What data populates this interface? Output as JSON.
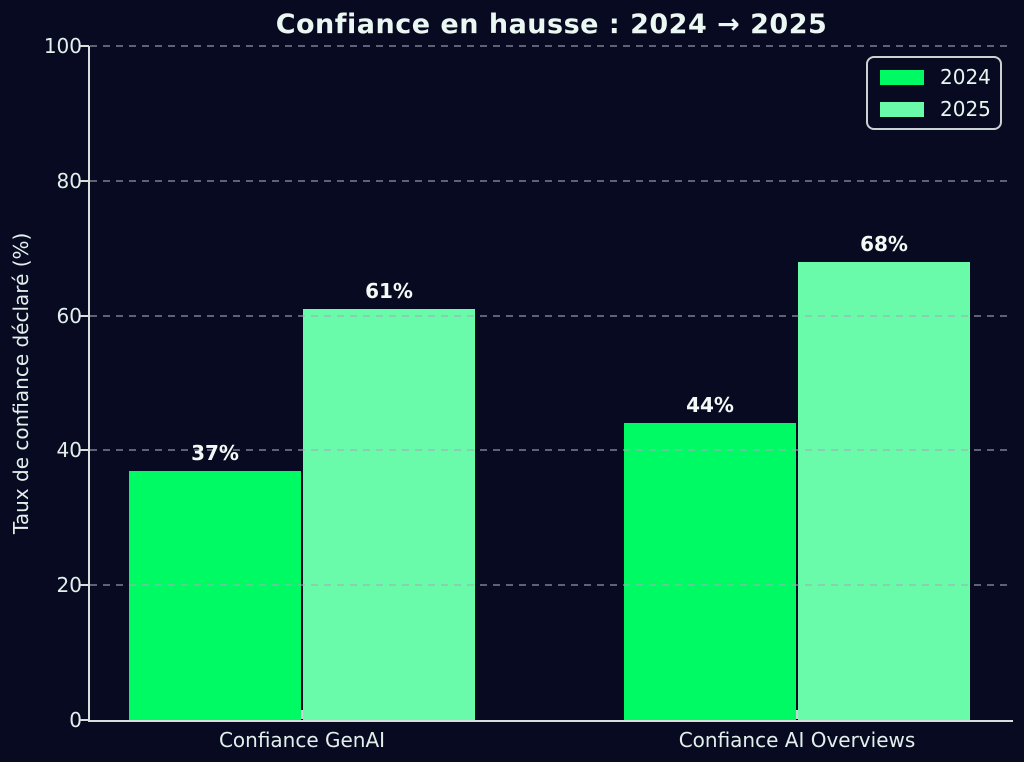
{
  "chart_data": {
    "type": "bar",
    "title": "Confiance en hausse : 2024 → 2025",
    "ylabel": "Taux de confiance déclaré (%)",
    "xlabel": "",
    "categories": [
      "Confiance GenAI",
      "Confiance AI Overviews"
    ],
    "series": [
      {
        "name": "2024",
        "color": "#00fa64",
        "values": [
          37,
          44
        ],
        "labels": [
          "37%",
          "44%"
        ]
      },
      {
        "name": "2025",
        "color": "#69fbaa",
        "values": [
          61,
          68
        ],
        "labels": [
          "61%",
          "68%"
        ]
      }
    ],
    "ylim": [
      0,
      100
    ],
    "yticks": [
      "0",
      "20",
      "40",
      "60",
      "80",
      "100"
    ],
    "grid": {
      "visible": true,
      "style": "dashed",
      "lines_at": [
        20,
        40,
        60,
        80,
        100
      ],
      "above_bars": true
    },
    "legend": {
      "position": "upper right",
      "entries": [
        "2024",
        "2025"
      ]
    },
    "colors": {
      "background": "#080a21",
      "text": "#e6f2ee",
      "bar_2024": "#00fa64",
      "bar_2025": "#69fbaa",
      "grid": "#a3abbc",
      "spine": "#d9dedd"
    }
  }
}
